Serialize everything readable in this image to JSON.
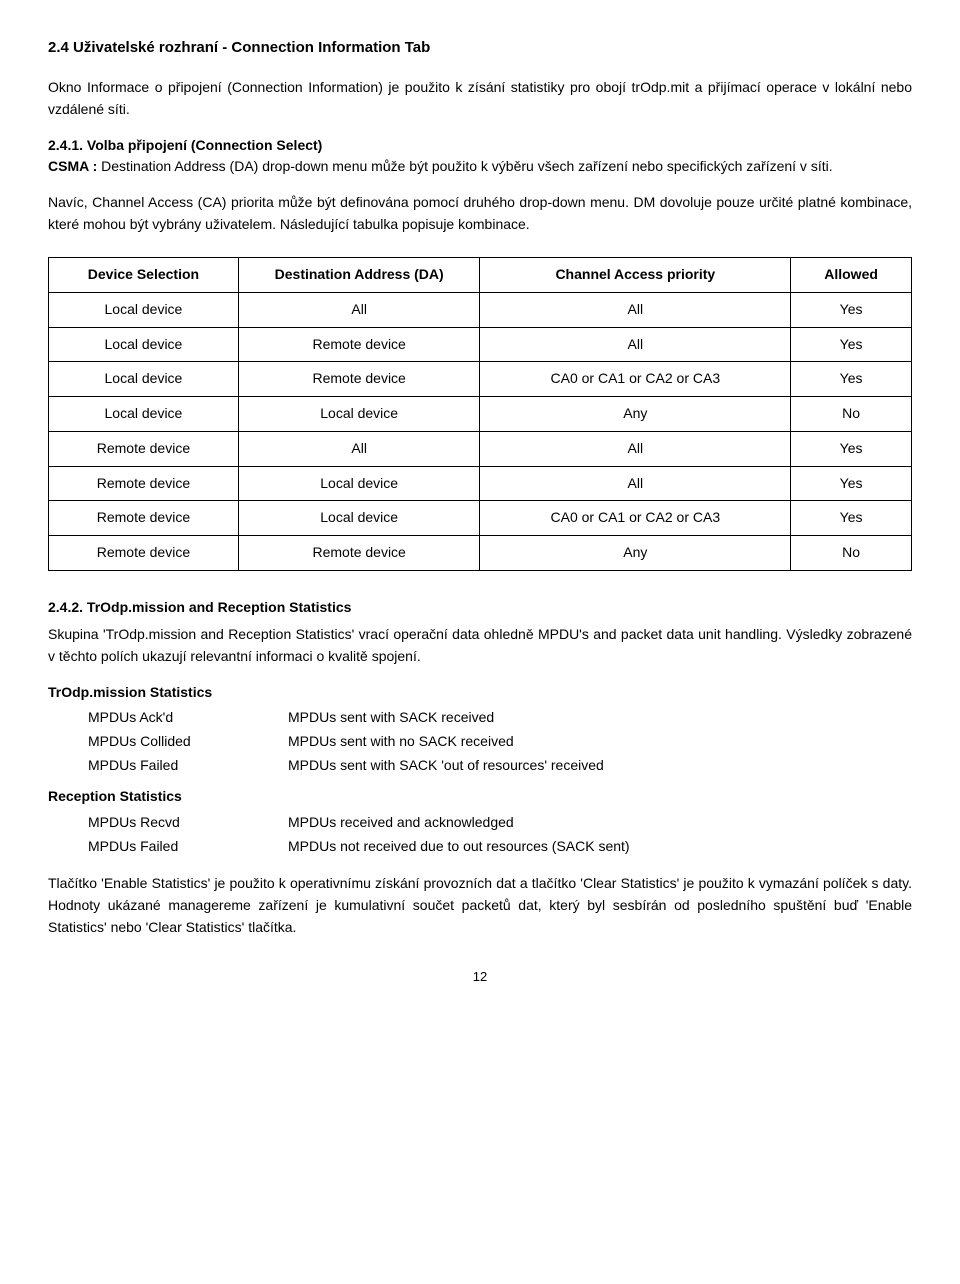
{
  "heading": "2.4 Uživatelské rozhraní - Connection Information Tab",
  "intro_para": "Okno Informace o připojení (Connection Information) je použito k zísání statistiky pro obojí trOdp.mit a přijímací operace v lokální nebo vzdálené síti.",
  "sub1_heading": "2.4.1. Volba připojení (Connection Select)",
  "sub1_p1_label": "CSMA :",
  "sub1_p1_text": " Destination Address (DA) drop-down menu může být použito k výběru všech zařízení nebo specifických zařízení v síti.",
  "sub1_p2": "Navíc, Channel Access (CA) priorita může být definována pomocí druhého drop-down menu. DM dovoluje pouze určité platné kombinace, které mohou být vybrány uživatelem. Následující tabulka popisuje kombinace.",
  "table": {
    "columns": [
      "Device Selection",
      "Destination Address (DA)",
      "Channel Access priority",
      "Allowed"
    ],
    "rows": [
      [
        "Local device",
        "All",
        "All",
        "Yes"
      ],
      [
        "Local device",
        "Remote device",
        "All",
        "Yes"
      ],
      [
        "Local device",
        "Remote device",
        "CA0 or CA1 or CA2 or CA3",
        "Yes"
      ],
      [
        "Local device",
        "Local device",
        "Any",
        "No"
      ],
      [
        "Remote device",
        "All",
        "All",
        "Yes"
      ],
      [
        "Remote device",
        "Local device",
        "All",
        "Yes"
      ],
      [
        "Remote device",
        "Local device",
        "CA0 or CA1 or CA2 or CA3",
        "Yes"
      ],
      [
        "Remote device",
        "Remote device",
        "Any",
        "No"
      ]
    ],
    "col_widths": [
      "22%",
      "28%",
      "36%",
      "14%"
    ]
  },
  "sub2_heading": "2.4.2. TrOdp.mission and Reception Statistics",
  "sub2_p1": "Skupina 'TrOdp.mission and Reception Statistics'  vrací operační data ohledně MPDU's and packet data unit handling. Výsledky zobrazené v těchto polích ukazují relevantní informaci o kvalitě spojení.",
  "stats": [
    {
      "group": "TrOdp.mission Statistics",
      "items": [
        {
          "label": "MPDUs Ack'd",
          "desc": "MPDUs sent with SACK received"
        },
        {
          "label": "MPDUs Collided",
          "desc": "MPDUs sent with no SACK received"
        },
        {
          "label": "MPDUs Failed",
          "desc": "MPDUs sent with SACK 'out of resources' received"
        }
      ]
    },
    {
      "group": "Reception Statistics",
      "items": [
        {
          "label": "MPDUs Recvd",
          "desc": "MPDUs received and acknowledged"
        },
        {
          "label": "MPDUs Failed",
          "desc": "MPDUs not received due to out resources (SACK sent)"
        }
      ]
    }
  ],
  "footer_para": "Tlačítko 'Enable Statistics' je použito k operativnímu získání provozních dat a tlačítko   'Clear Statistics' je použito k vymazání políček s daty. Hodnoty ukázané managereme zařízení je kumulativní součet packetů dat, který byl sesbírán od posledního spuštění buď 'Enable Statistics' nebo 'Clear Statistics' tlačítka.",
  "page_number": "12"
}
